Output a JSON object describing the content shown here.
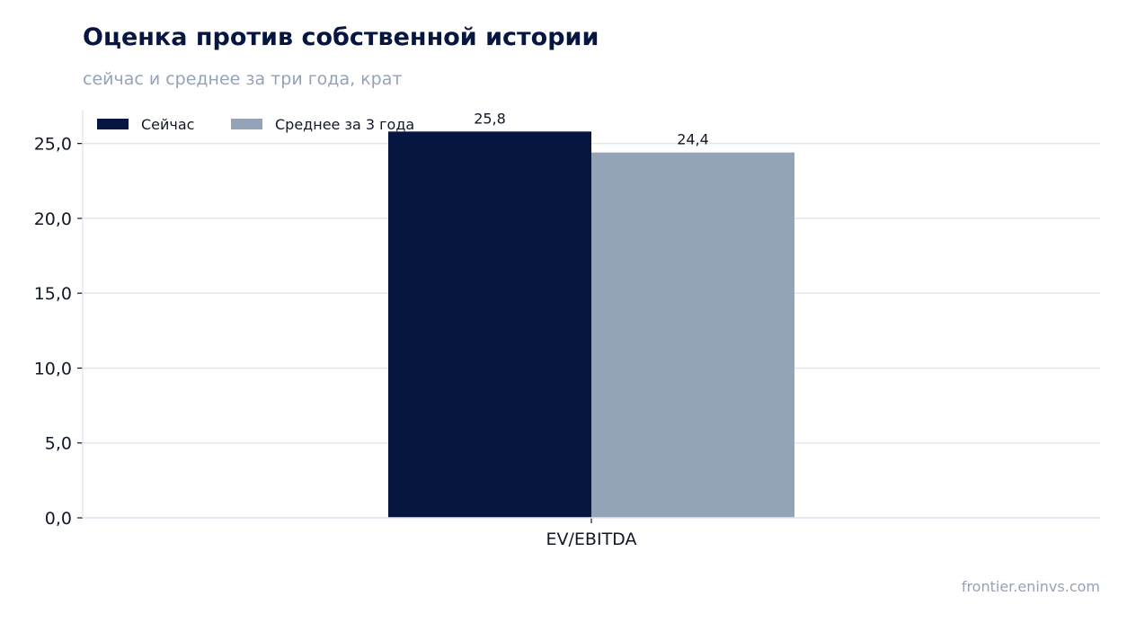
{
  "header": {
    "title": "Оценка против собственной истории",
    "subtitle": "сейчас и среднее за три года, крат"
  },
  "footer": {
    "source": "frontier.eninvs.com"
  },
  "chart_data": {
    "type": "bar",
    "categories": [
      "EV/EBITDA"
    ],
    "series": [
      {
        "name": "Сейчас",
        "values": [
          25.8
        ],
        "labels": [
          "25,8"
        ],
        "color": "#061640"
      },
      {
        "name": "Среднее за 3 года",
        "values": [
          24.4
        ],
        "labels": [
          "24,4"
        ],
        "color": "#94a3b8"
      }
    ],
    "yticks": [
      0,
      5,
      10,
      15,
      20,
      25
    ],
    "ytick_labels": [
      "0,0",
      "5,0",
      "10,0",
      "15,0",
      "20,0",
      "25,0"
    ],
    "ylim": [
      0,
      27.2
    ],
    "grid": true,
    "legend_position": "top-left",
    "colors": {
      "grid": "#e2e8f0",
      "axis": "#e2e8f0",
      "tick": "#111827"
    }
  }
}
